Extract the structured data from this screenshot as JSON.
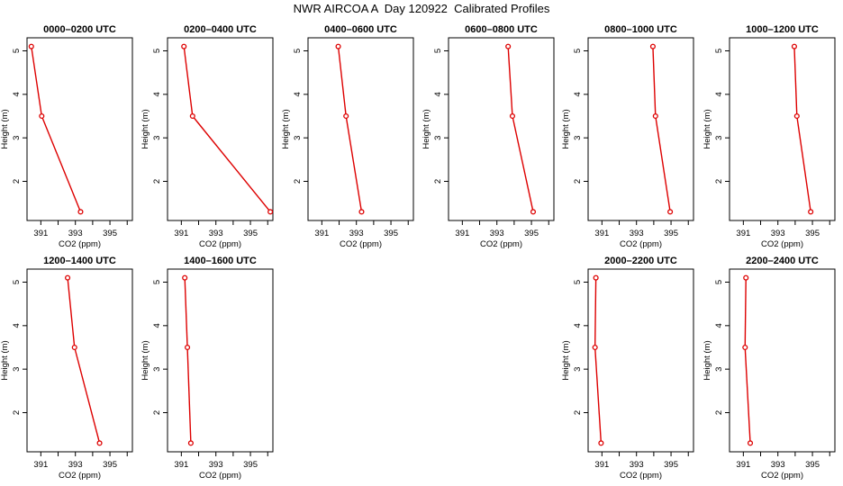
{
  "title": "NWR AIRCOA A  Day 120922  Calibrated Profiles",
  "colors": {
    "series": "#dd0000",
    "axis": "#000000"
  },
  "chart_data": [
    {
      "type": "line",
      "title": "0000–0200 UTC",
      "xlabel": "CO2 (ppm)",
      "ylabel": "Height (m)",
      "xlim": [
        390.2,
        396.3
      ],
      "ylim": [
        1.1,
        5.3
      ],
      "xticks": [
        391,
        392,
        393,
        394,
        395,
        396
      ],
      "xticklabels": [
        "391",
        "393",
        "395"
      ],
      "yticks": [
        2,
        3,
        4,
        5
      ],
      "x": [
        393.3,
        391.05,
        390.45
      ],
      "y": [
        1.3,
        3.5,
        5.1
      ]
    },
    {
      "type": "line",
      "title": "0200–0400 UTC",
      "xlabel": "CO2 (ppm)",
      "ylabel": "Height (m)",
      "xlim": [
        390.2,
        396.3
      ],
      "ylim": [
        1.1,
        5.3
      ],
      "xticks": [
        391,
        392,
        393,
        394,
        395,
        396
      ],
      "xticklabels": [
        "391",
        "393",
        "395"
      ],
      "yticks": [
        2,
        3,
        4,
        5
      ],
      "x": [
        396.15,
        391.65,
        391.15
      ],
      "y": [
        1.3,
        3.5,
        5.1
      ]
    },
    {
      "type": "line",
      "title": "0400–0600 UTC",
      "xlabel": "CO2 (ppm)",
      "ylabel": "Height (m)",
      "xlim": [
        390.2,
        396.3
      ],
      "ylim": [
        1.1,
        5.3
      ],
      "xticks": [
        391,
        392,
        393,
        394,
        395,
        396
      ],
      "xticklabels": [
        "391",
        "393",
        "395"
      ],
      "yticks": [
        2,
        3,
        4,
        5
      ],
      "x": [
        393.3,
        392.4,
        391.95
      ],
      "y": [
        1.3,
        3.5,
        5.1
      ]
    },
    {
      "type": "line",
      "title": "0600–0800 UTC",
      "xlabel": "CO2 (ppm)",
      "ylabel": "Height (m)",
      "xlim": [
        390.2,
        396.3
      ],
      "ylim": [
        1.1,
        5.3
      ],
      "xticks": [
        391,
        392,
        393,
        394,
        395,
        396
      ],
      "xticklabels": [
        "391",
        "393",
        "395"
      ],
      "yticks": [
        2,
        3,
        4,
        5
      ],
      "x": [
        395.1,
        393.9,
        393.65
      ],
      "y": [
        1.3,
        3.5,
        5.1
      ]
    },
    {
      "type": "line",
      "title": "0800–1000 UTC",
      "xlabel": "CO2 (ppm)",
      "ylabel": "Height (m)",
      "xlim": [
        390.2,
        396.3
      ],
      "ylim": [
        1.1,
        5.3
      ],
      "xticks": [
        391,
        392,
        393,
        394,
        395,
        396
      ],
      "xticklabels": [
        "391",
        "393",
        "395"
      ],
      "yticks": [
        2,
        3,
        4,
        5
      ],
      "x": [
        394.95,
        394.1,
        393.95
      ],
      "y": [
        1.3,
        3.5,
        5.1
      ]
    },
    {
      "type": "line",
      "title": "1000–1200 UTC",
      "xlabel": "CO2 (ppm)",
      "ylabel": "Height (m)",
      "xlim": [
        390.2,
        396.3
      ],
      "ylim": [
        1.1,
        5.3
      ],
      "xticks": [
        391,
        392,
        393,
        394,
        395,
        396
      ],
      "xticklabels": [
        "391",
        "393",
        "395"
      ],
      "yticks": [
        2,
        3,
        4,
        5
      ],
      "x": [
        394.9,
        394.1,
        393.95
      ],
      "y": [
        1.3,
        3.5,
        5.1
      ]
    },
    {
      "type": "line",
      "title": "1200–1400 UTC",
      "xlabel": "CO2 (ppm)",
      "ylabel": "Height (m)",
      "xlim": [
        390.2,
        396.3
      ],
      "ylim": [
        1.1,
        5.3
      ],
      "xticks": [
        391,
        392,
        393,
        394,
        395,
        396
      ],
      "xticklabels": [
        "391",
        "393",
        "395"
      ],
      "yticks": [
        2,
        3,
        4,
        5
      ],
      "x": [
        394.4,
        392.95,
        392.55
      ],
      "y": [
        1.3,
        3.5,
        5.1
      ]
    },
    {
      "type": "line",
      "title": "1400–1600 UTC",
      "xlabel": "CO2 (ppm)",
      "ylabel": "Height (m)",
      "xlim": [
        390.2,
        396.3
      ],
      "ylim": [
        1.1,
        5.3
      ],
      "xticks": [
        391,
        392,
        393,
        394,
        395,
        396
      ],
      "xticklabels": [
        "391",
        "393",
        "395"
      ],
      "yticks": [
        2,
        3,
        4,
        5
      ],
      "x": [
        391.55,
        391.35,
        391.2
      ],
      "y": [
        1.3,
        3.5,
        5.1
      ]
    },
    {
      "type": "line",
      "title": "2000–2200 UTC",
      "xlabel": "CO2 (ppm)",
      "ylabel": "Height (m)",
      "xlim": [
        390.2,
        396.3
      ],
      "ylim": [
        1.1,
        5.3
      ],
      "xticks": [
        391,
        392,
        393,
        394,
        395,
        396
      ],
      "xticklabels": [
        "391",
        "393",
        "395"
      ],
      "yticks": [
        2,
        3,
        4,
        5
      ],
      "x": [
        390.95,
        390.6,
        390.65
      ],
      "y": [
        1.3,
        3.5,
        5.1
      ]
    },
    {
      "type": "line",
      "title": "2200–2400 UTC",
      "xlabel": "CO2 (ppm)",
      "ylabel": "Height (m)",
      "xlim": [
        390.2,
        396.3
      ],
      "ylim": [
        1.1,
        5.3
      ],
      "xticks": [
        391,
        392,
        393,
        394,
        395,
        396
      ],
      "xticklabels": [
        "391",
        "393",
        "395"
      ],
      "yticks": [
        2,
        3,
        4,
        5
      ],
      "x": [
        391.4,
        391.1,
        391.15
      ],
      "y": [
        1.3,
        3.5,
        5.1
      ]
    }
  ]
}
